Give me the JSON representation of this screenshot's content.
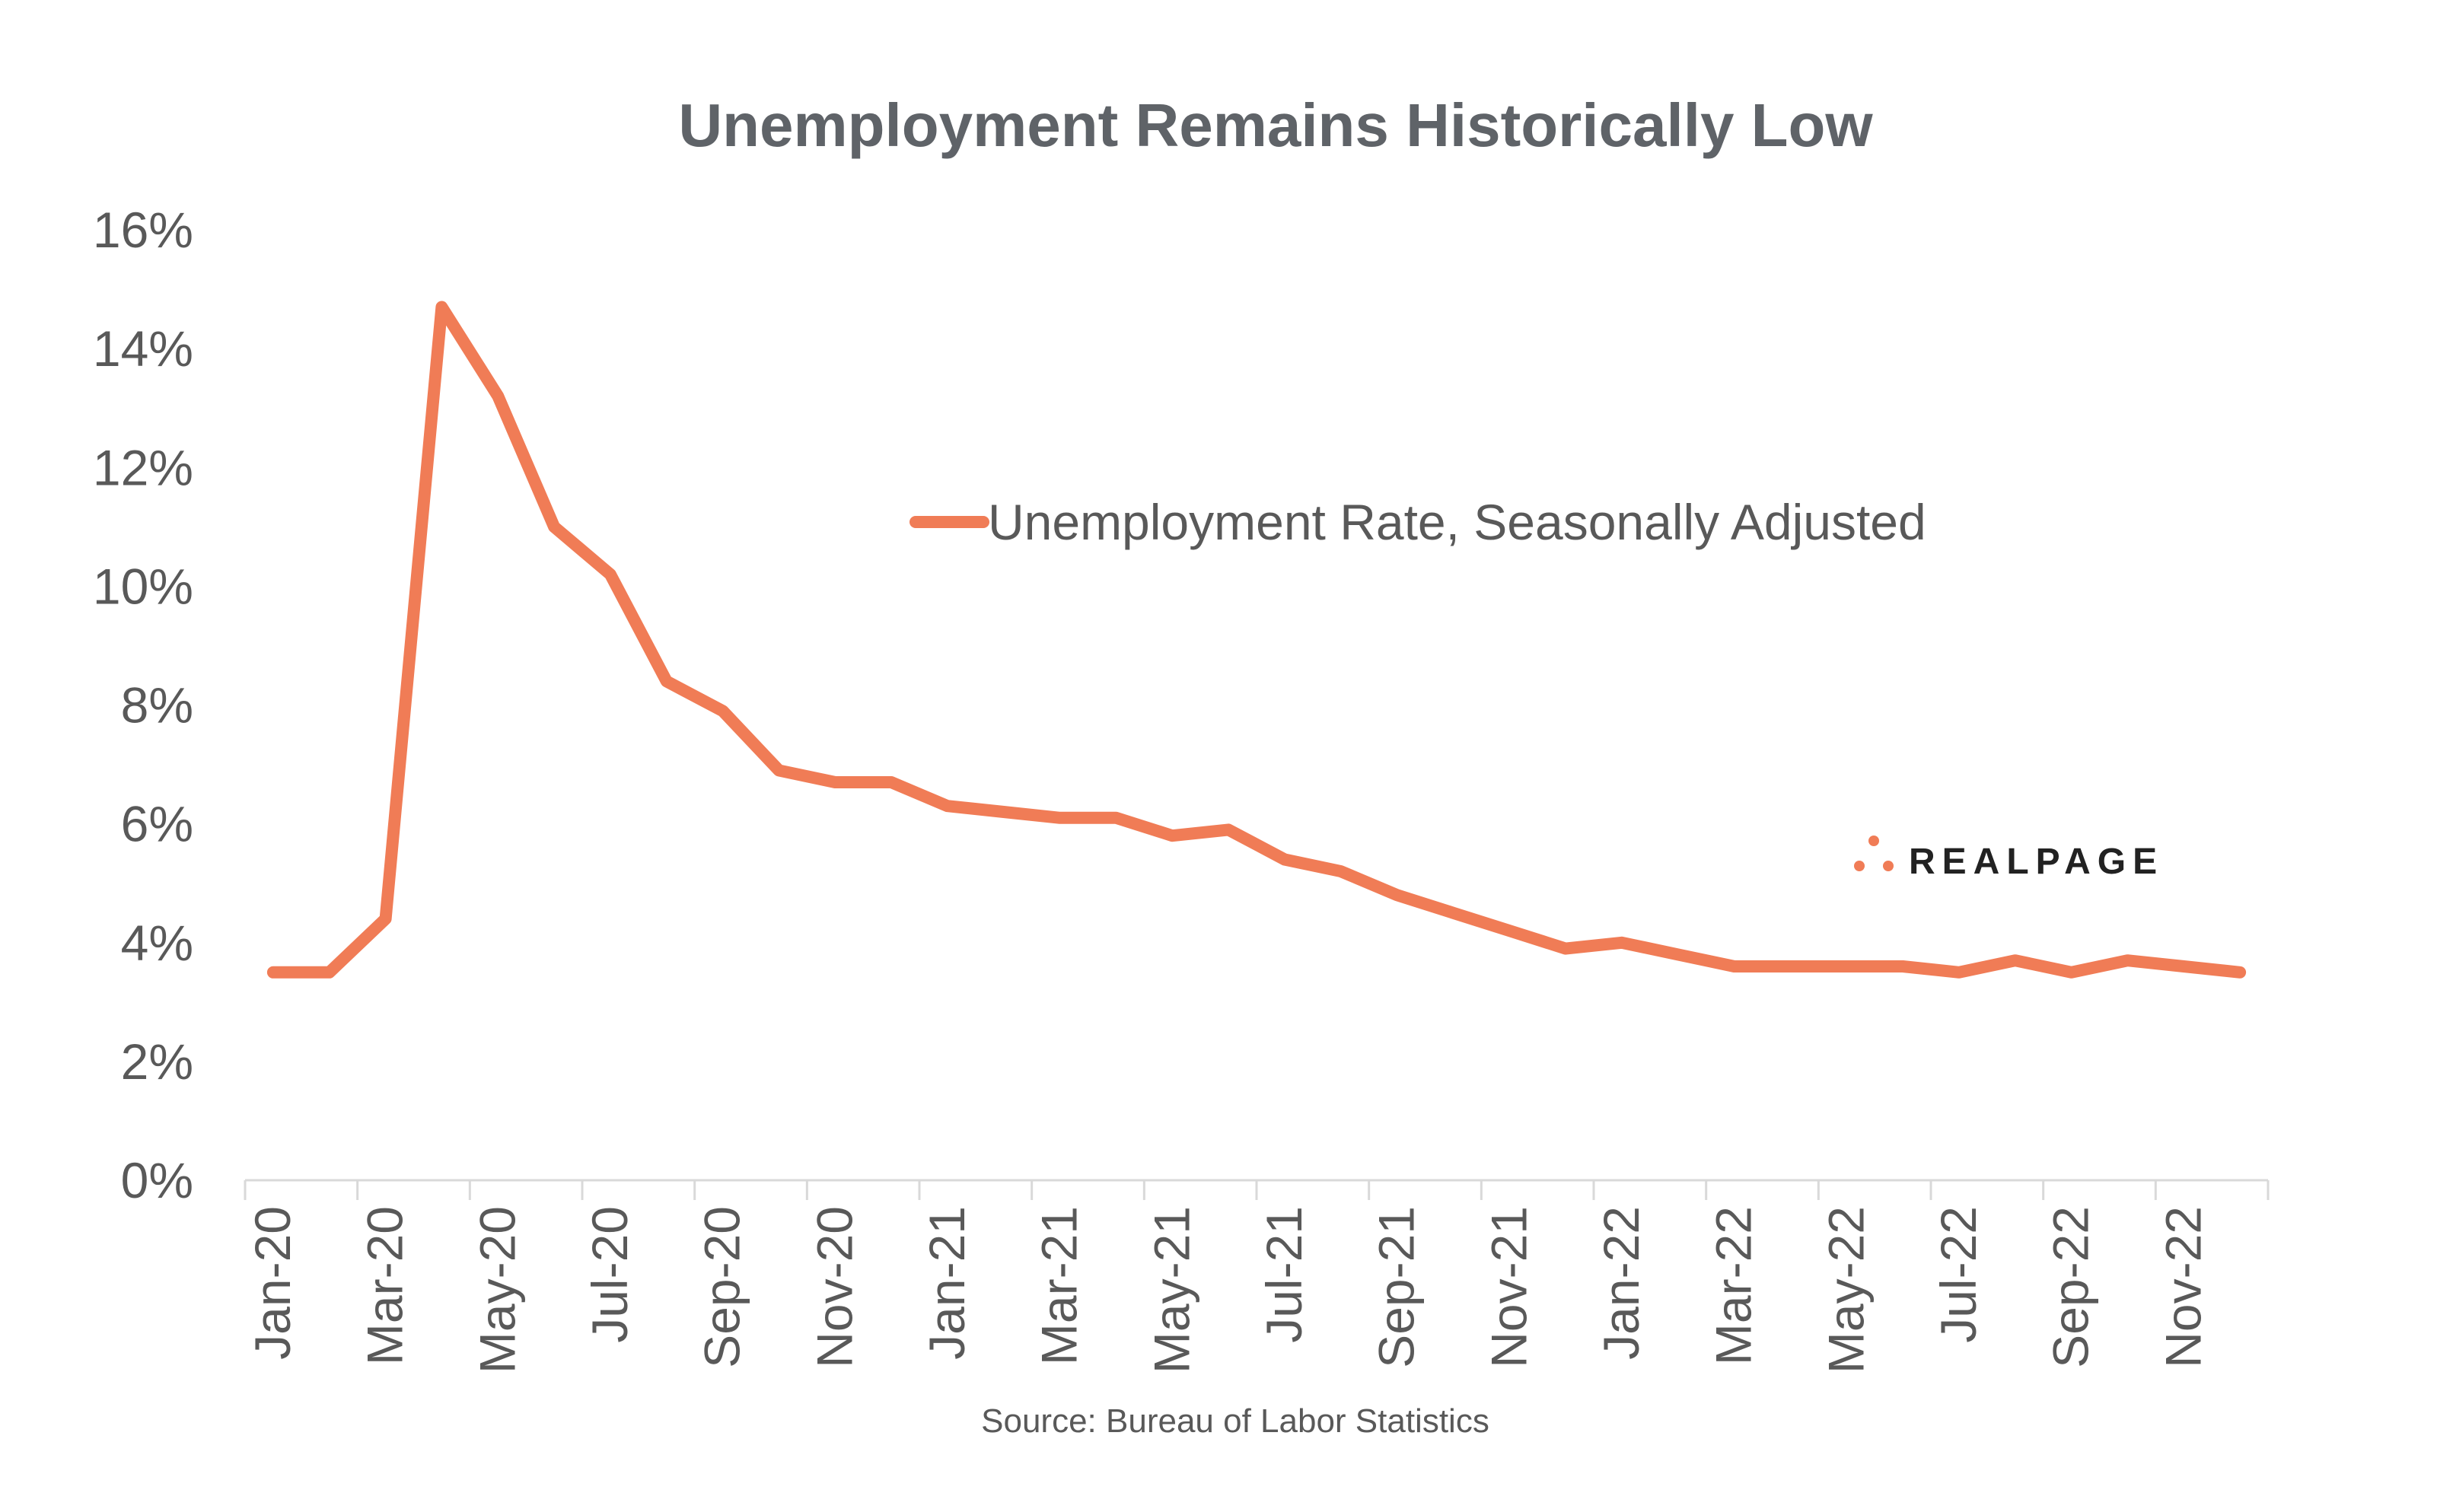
{
  "chart_data": {
    "type": "line",
    "title": "Unemployment Remains Historically Low",
    "xlabel": "",
    "ylabel": "",
    "ylim": [
      0,
      16
    ],
    "yticks": [
      0,
      2,
      4,
      6,
      8,
      10,
      12,
      14,
      16
    ],
    "ytick_labels": [
      "0%",
      "2%",
      "4%",
      "6%",
      "8%",
      "10%",
      "12%",
      "14%",
      "16%"
    ],
    "categories": [
      "Jan-20",
      "Feb-20",
      "Mar-20",
      "Apr-20",
      "May-20",
      "Jun-20",
      "Jul-20",
      "Aug-20",
      "Sep-20",
      "Oct-20",
      "Nov-20",
      "Dec-20",
      "Jan-21",
      "Feb-21",
      "Mar-21",
      "Apr-21",
      "May-21",
      "Jun-21",
      "Jul-21",
      "Aug-21",
      "Sep-21",
      "Oct-21",
      "Nov-21",
      "Dec-21",
      "Jan-22",
      "Feb-22",
      "Mar-22",
      "Apr-22",
      "May-22",
      "Jun-22",
      "Jul-22",
      "Aug-22",
      "Sep-22",
      "Oct-22",
      "Nov-22",
      "Dec-22"
    ],
    "xtick_labels": [
      "Jan-20",
      "Mar-20",
      "May-20",
      "Jul-20",
      "Sep-20",
      "Nov-20",
      "Jan-21",
      "Mar-21",
      "May-21",
      "Jul-21",
      "Sep-21",
      "Nov-21",
      "Jan-22",
      "Mar-22",
      "May-22",
      "Jul-22",
      "Sep-22",
      "Nov-22"
    ],
    "series": [
      {
        "name": "Unemployment Rate, Seasonally Adjusted",
        "color": "#f07c56",
        "values": [
          3.5,
          3.5,
          4.4,
          14.7,
          13.2,
          11.0,
          10.2,
          8.4,
          7.9,
          6.9,
          6.7,
          6.7,
          6.3,
          6.2,
          6.1,
          6.1,
          5.8,
          5.9,
          5.4,
          5.2,
          4.8,
          4.5,
          4.2,
          3.9,
          4.0,
          3.8,
          3.6,
          3.6,
          3.6,
          3.6,
          3.5,
          3.7,
          3.5,
          3.7,
          3.6,
          3.5
        ]
      }
    ],
    "legend": {
      "label": "Unemployment Rate, Seasonally Adjusted",
      "placement": "upper-center"
    },
    "grid": false,
    "source": "Source: Bureau of Labor Statistics"
  },
  "logo": {
    "text": "REALPAGE",
    "accent_color": "#f07c56"
  },
  "colors": {
    "line": "#f07c56",
    "text": "#595959",
    "title": "#5f6368",
    "axis": "#d9d9d9"
  }
}
